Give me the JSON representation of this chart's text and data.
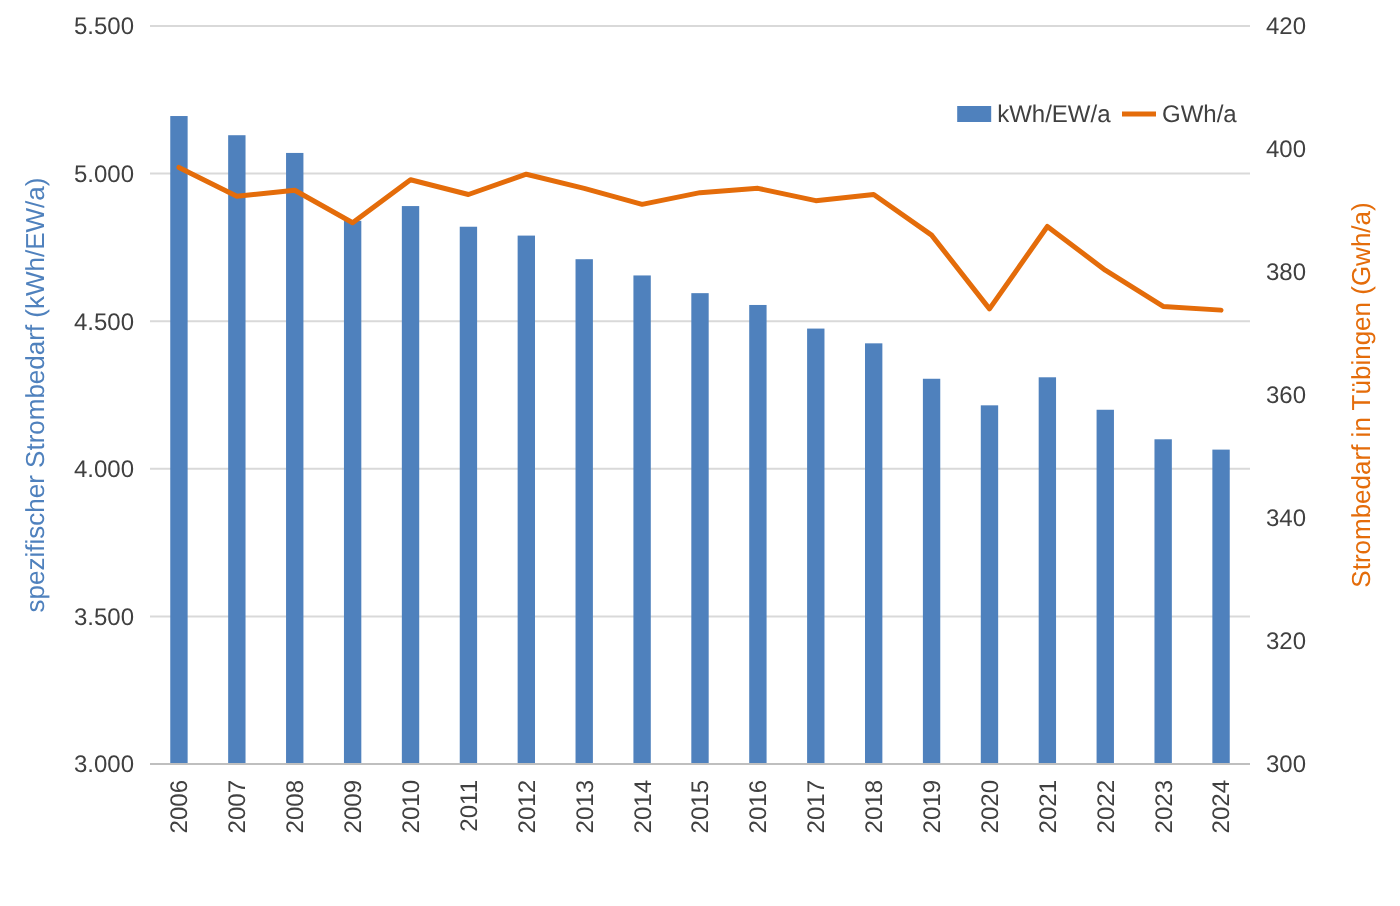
{
  "chart_data": {
    "type": "bar",
    "categories": [
      "2006",
      "2007",
      "2008",
      "2009",
      "2010",
      "2011",
      "2012",
      "2013",
      "2014",
      "2015",
      "2016",
      "2017",
      "2018",
      "2019",
      "2020",
      "2021",
      "2022",
      "2023",
      "2024"
    ],
    "series": [
      {
        "name": "kWh/EW/a",
        "color": "#4f81bd",
        "values": [
          5195,
          5130,
          5070,
          4840,
          4890,
          4820,
          4790,
          4710,
          4655,
          4595,
          4555,
          4475,
          4425,
          4305,
          4215,
          4310,
          4200,
          4100,
          4065
        ]
      },
      {
        "name": "GWh/a",
        "type": "line",
        "axis": "y2",
        "color": "#e46c0a",
        "values": [
          397,
          392.3,
          393.3,
          388,
          395,
          392.6,
          395.9,
          393.6,
          391,
          392.9,
          393.6,
          391.6,
          392.6,
          386,
          374,
          387.4,
          380.3,
          374.4,
          373.8
        ]
      }
    ],
    "ylabel": "spezifischer Strombedarf (kWh/EW/a)",
    "y2label": "Strombedarf in Tübingen (Gwh/a)",
    "ylim": [
      3000,
      5500
    ],
    "yticks": [
      {
        "value": 3000,
        "label": "3.000"
      },
      {
        "value": 3500,
        "label": "3.500"
      },
      {
        "value": 4000,
        "label": "4.000"
      },
      {
        "value": 4500,
        "label": "4.500"
      },
      {
        "value": 5000,
        "label": "5.000"
      },
      {
        "value": 5500,
        "label": "5.500"
      }
    ],
    "y2lim": [
      300,
      420
    ],
    "y2ticks": [
      300,
      320,
      340,
      360,
      380,
      400,
      420
    ],
    "grid": "y",
    "legend": "top right"
  }
}
